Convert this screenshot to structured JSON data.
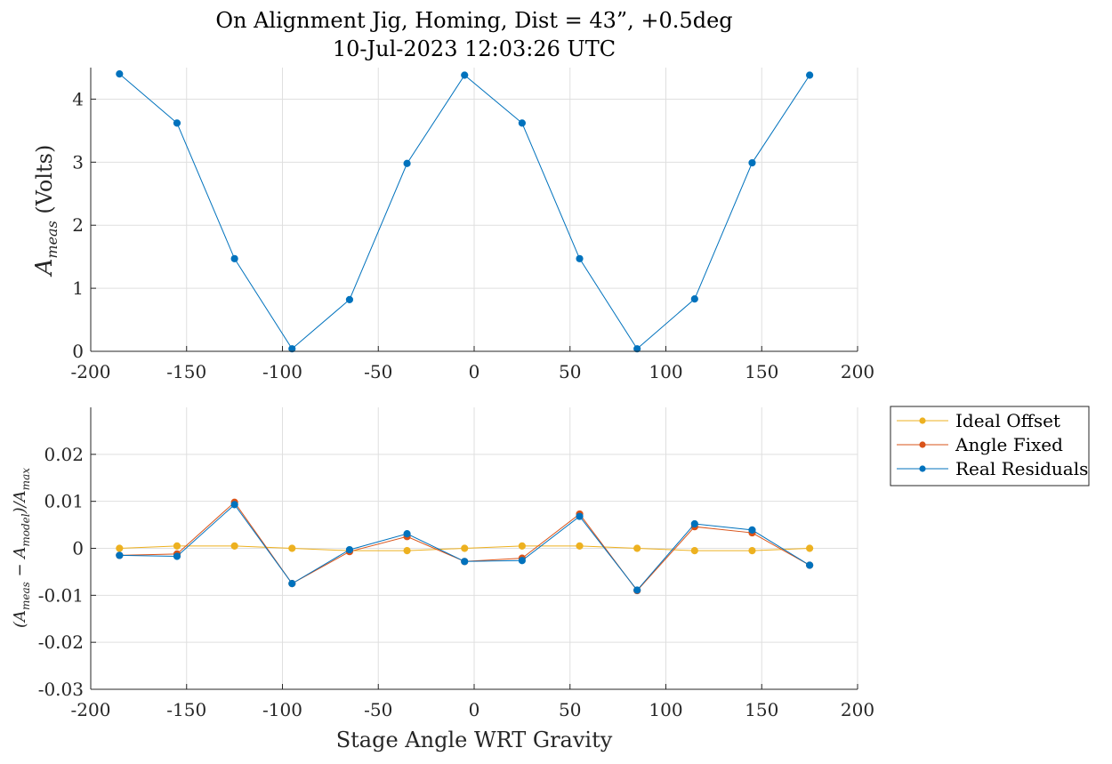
{
  "chart_data": [
    {
      "type": "line",
      "title": "On Alignment Jig, Homing, Dist = 43”, +0.5deg",
      "subtitle": "10-Jul-2023 12:03:26 UTC",
      "xlabel": "",
      "ylabel_main": "A",
      "ylabel_sub": "meas",
      "ylabel_rest": " (Volts)",
      "xlim": [
        -200,
        200
      ],
      "ylim": [
        0,
        4.5
      ],
      "xticks": [
        "-200",
        "-150",
        "-100",
        "-50",
        "0",
        "50",
        "100",
        "150",
        "200"
      ],
      "yticks": [
        "0",
        "1",
        "2",
        "3",
        "4"
      ],
      "grid": true,
      "series": [
        {
          "color": "#0072BD",
          "x": [
            -185,
            -155,
            -125,
            -95,
            -65,
            -35,
            -5,
            25,
            55,
            85,
            115,
            145,
            175
          ],
          "y": [
            4.4,
            3.62,
            1.47,
            0.04,
            0.82,
            2.98,
            4.38,
            3.62,
            1.47,
            0.04,
            0.83,
            2.99,
            4.38
          ]
        }
      ]
    },
    {
      "type": "line",
      "xlabel": "Stage Angle WRT Gravity",
      "ylabel": "(A_meas − A_model)/A_max",
      "ylabel_parts": [
        "(A",
        "meas",
        " − A",
        "model",
        ")/A",
        "max"
      ],
      "xlim": [
        -200,
        200
      ],
      "ylim": [
        -0.03,
        0.03
      ],
      "xticks": [
        "-200",
        "-150",
        "-100",
        "-50",
        "0",
        "50",
        "100",
        "150",
        "200"
      ],
      "yticks": [
        "-0.03",
        "-0.02",
        "-0.01",
        "0",
        "0.01",
        "0.02"
      ],
      "grid": true,
      "legend_position": "outside-top-right",
      "series": [
        {
          "name": "Ideal Offset",
          "color": "#EDB120",
          "x": [
            -185,
            -155,
            -125,
            -95,
            -65,
            -35,
            -5,
            25,
            55,
            85,
            115,
            145,
            175
          ],
          "y": [
            0.0,
            0.0005,
            0.0005,
            0.0,
            -0.0005,
            -0.0005,
            0.0,
            0.0005,
            0.0005,
            0.0,
            -0.0005,
            -0.0005,
            0.0
          ]
        },
        {
          "name": "Angle Fixed",
          "color": "#D95319",
          "x": [
            -185,
            -155,
            -125,
            -95,
            -65,
            -35,
            -5,
            25,
            55,
            85,
            115,
            145,
            175
          ],
          "y": [
            -0.0015,
            -0.0012,
            0.0098,
            -0.0075,
            -0.0007,
            0.0025,
            -0.0028,
            -0.0021,
            0.0073,
            -0.009,
            0.0046,
            0.0033,
            -0.0036
          ]
        },
        {
          "name": "Real Residuals",
          "color": "#0072BD",
          "x": [
            -185,
            -155,
            -125,
            -95,
            -65,
            -35,
            -5,
            25,
            55,
            85,
            115,
            145,
            175
          ],
          "y": [
            -0.0015,
            -0.0017,
            0.0093,
            -0.0075,
            -0.0003,
            0.0031,
            -0.0028,
            -0.0026,
            0.0068,
            -0.0089,
            0.0052,
            0.0039,
            -0.0036
          ]
        }
      ]
    }
  ]
}
